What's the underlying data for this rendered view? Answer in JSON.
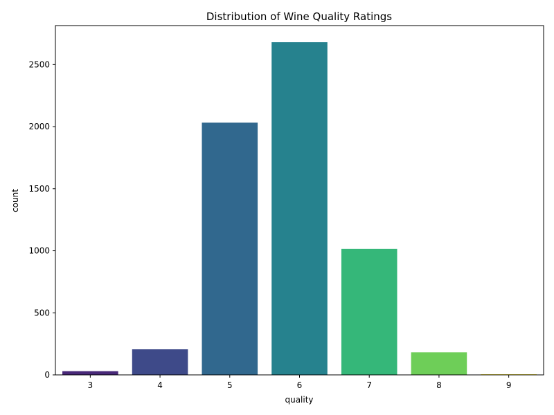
{
  "chart_data": {
    "type": "bar",
    "title": "Distribution of Wine Quality Ratings",
    "xlabel": "quality",
    "ylabel": "count",
    "categories": [
      "3",
      "4",
      "5",
      "6",
      "7",
      "8",
      "9"
    ],
    "values": [
      30,
      206,
      2032,
      2680,
      1015,
      182,
      5
    ],
    "colors": [
      "#482878",
      "#3e4a89",
      "#31688e",
      "#26828e",
      "#35b779",
      "#6ece58",
      "#fde725"
    ],
    "ylim": [
      0,
      2814
    ],
    "yticks": [
      0,
      500,
      1000,
      1500,
      2000,
      2500
    ],
    "grid": false,
    "legend": "none"
  }
}
